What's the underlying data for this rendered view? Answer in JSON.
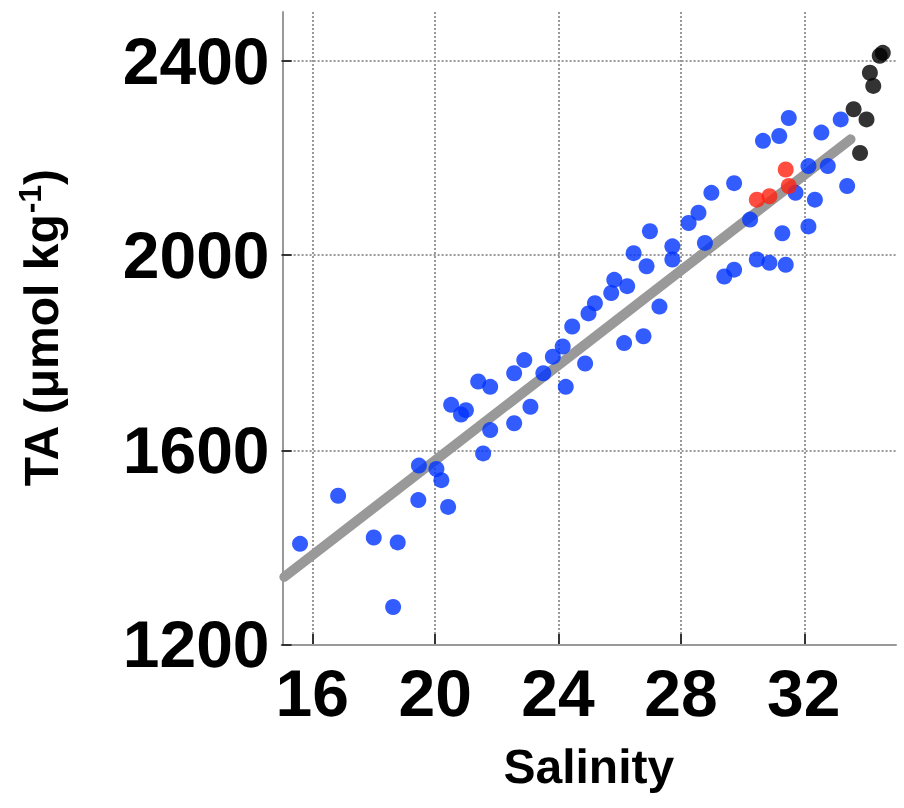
{
  "chart_data": {
    "type": "scatter",
    "xlabel": "Salinity",
    "ylabel": "TA (μmol kg$^{-1}$)",
    "xlim": [
      15,
      35
    ],
    "xticks": [
      16,
      20,
      24,
      28,
      32
    ],
    "ylim": [
      1200,
      2500
    ],
    "yticks": [
      1200,
      1600,
      2000,
      2400
    ],
    "grid": true,
    "marker": "circle",
    "series": [
      {
        "color": "#0033ff",
        "x": [
          15.6,
          16.84,
          18.0,
          18.78,
          18.63,
          19.45,
          19.47,
          20.04,
          20.2,
          20.42,
          21.56,
          20.52,
          21.0,
          20.84,
          21.4,
          21.79,
          21.79,
          22.57,
          22.57,
          23.1,
          22.9,
          24.25,
          24.88,
          23.83,
          24.46,
          25.2,
          25.73,
          26.15,
          26.78,
          26.25,
          26.88,
          27.72,
          27.3,
          26.99,
          28.25,
          28.78,
          29.41,
          29.73,
          28.99,
          29.73,
          30.47,
          30.88,
          31.41,
          30.67,
          31.2,
          31.51,
          31.3,
          32.15,
          32.36,
          32.78,
          32.57,
          33.2,
          33.41,
          32.15,
          31.73,
          30.25,
          28.57,
          27.72,
          26.46,
          25.83,
          24.99,
          24.15,
          23.52
        ],
        "values": [
          1406,
          1505,
          1419,
          1409,
          1276,
          1496,
          1567,
          1560,
          1537,
          1482,
          1592,
          1692,
          1681,
          1672,
          1740,
          1729,
          1640,
          1654,
          1757,
          1688,
          1784,
          1729,
          1777,
          1791,
          1853,
          1901,
          1922,
          1819,
          1833,
          1936,
          1977,
          1991,
          1894,
          2049,
          2066,
          2025,
          1956,
          1970,
          2128,
          2148,
          1991,
          1984,
          1980,
          2235,
          2245,
          2282,
          2045,
          2059,
          2114,
          2183,
          2252,
          2279,
          2142,
          2183,
          2128,
          2073,
          2087,
          2018,
          2004,
          1949,
          1880,
          1812,
          1757
        ]
      },
      {
        "color": "#ff2010",
        "x": [
          30.47,
          30.88,
          31.41,
          31.51
        ],
        "values": [
          2114,
          2121,
          2176,
          2142
        ]
      },
      {
        "color": "#000000",
        "x": [
          33.62,
          33.83,
          34.04,
          34.26,
          34.47,
          34.57,
          34.15
        ],
        "values": [
          2300,
          2210,
          2279,
          2348,
          2410,
          2416,
          2375
        ]
      },
      {
        "type": "line",
        "color": "#999999",
        "line_style": "solid",
        "marker": "none",
        "x": [
          15.09,
          33.52
        ],
        "values": [
          1338,
          2238
        ]
      }
    ]
  }
}
